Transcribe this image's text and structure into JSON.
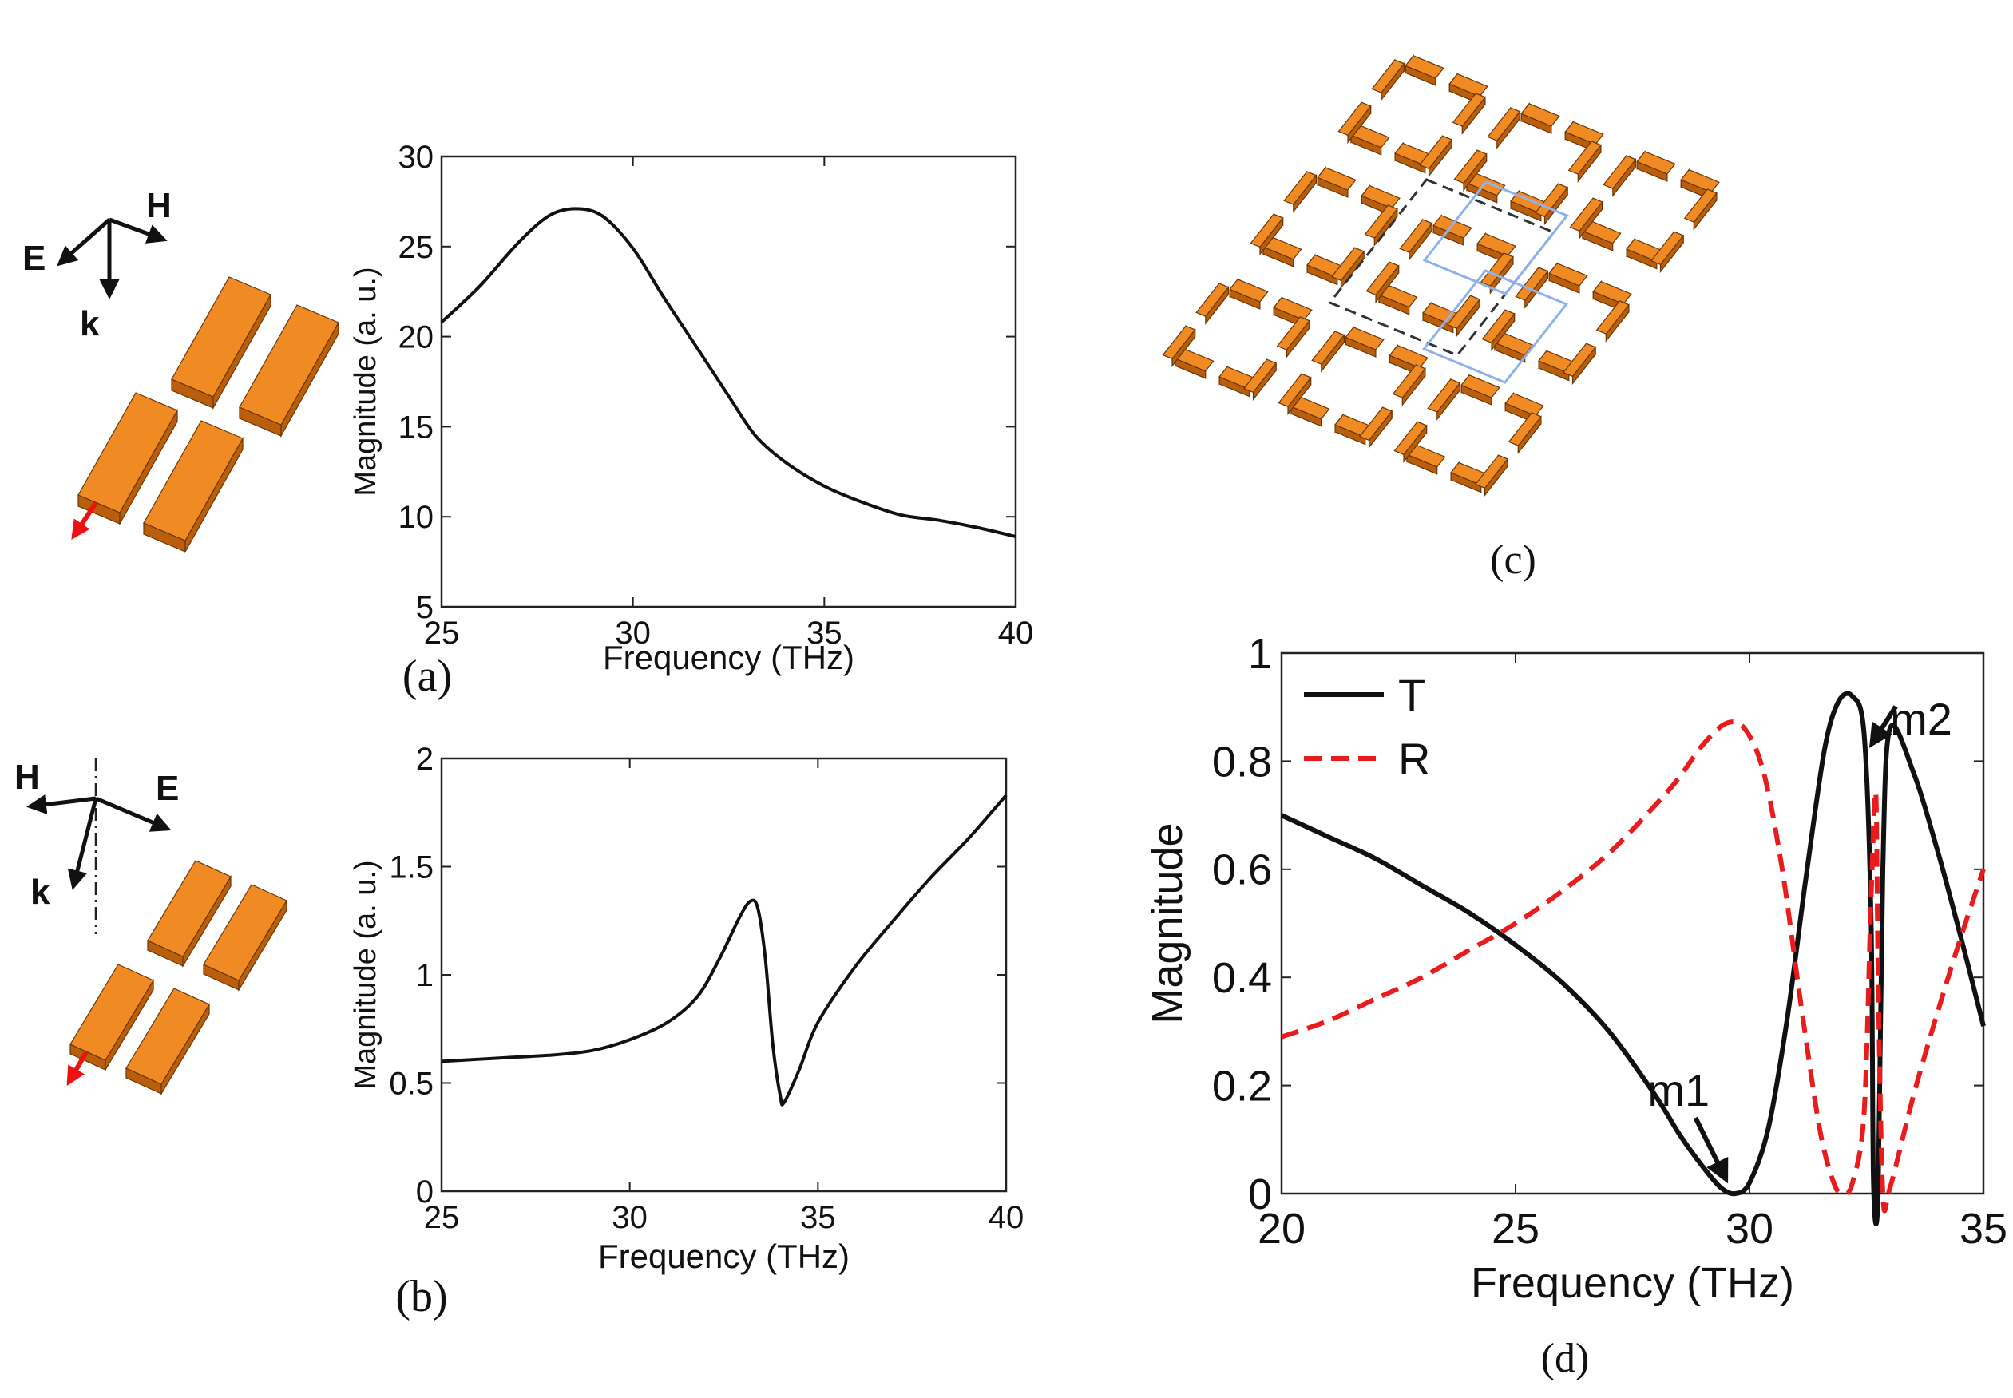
{
  "figure": {
    "caption_a": "(a)",
    "caption_b": "(b)",
    "caption_c": "(c)",
    "caption_d": "(d)"
  },
  "diagram_a": {
    "e_label": "E",
    "h_label": "H",
    "k_label": "k"
  },
  "diagram_b": {
    "e_label": "E",
    "h_label": "H",
    "k_label": "k"
  },
  "colors": {
    "bar_top": "#f08a22",
    "bar_front": "#b85e0c",
    "bar_edge": "#6b3606",
    "arrow_red": "#ee1111",
    "curve_black": "#111111",
    "curve_red": "#e81c1c",
    "unit_cell_blue": "#8fb2ec",
    "unit_cell_dash": "#333333"
  },
  "chart_data": [
    {
      "id": "a",
      "type": "line",
      "title": "",
      "xlabel": "Frequency (THz)",
      "ylabel": "Magnitude (a. u.)",
      "xlim": [
        25,
        40
      ],
      "ylim": [
        5,
        30
      ],
      "xticks": [
        25,
        30,
        35,
        40
      ],
      "yticks": [
        5,
        10,
        15,
        20,
        25,
        30
      ],
      "grid": false,
      "series": [
        {
          "name": "magnitude",
          "x": [
            25,
            26,
            27,
            27.8,
            28.5,
            29.2,
            30,
            30.8,
            31.7,
            32.5,
            33.2,
            34,
            35,
            36,
            37,
            38,
            39,
            40
          ],
          "y": [
            20.8,
            22.8,
            25.2,
            26.7,
            27.1,
            26.7,
            24.9,
            22.2,
            19.3,
            16.7,
            14.5,
            13.0,
            11.7,
            10.8,
            10.1,
            9.8,
            9.4,
            8.9
          ]
        }
      ]
    },
    {
      "id": "b",
      "type": "line",
      "title": "",
      "xlabel": "Frequency (THz)",
      "ylabel": "Magnitude (a. u.)",
      "xlim": [
        25,
        40
      ],
      "ylim": [
        0,
        2
      ],
      "xticks": [
        25,
        30,
        35,
        40
      ],
      "yticks": [
        0,
        0.5,
        1,
        1.5,
        2
      ],
      "ytick_labels": [
        "0",
        "0.5",
        "1",
        "1.5",
        "2"
      ],
      "grid": false,
      "series": [
        {
          "name": "magnitude",
          "x": [
            25,
            26,
            27,
            28,
            29,
            30,
            31,
            31.8,
            32.4,
            32.9,
            33.2,
            33.4,
            33.6,
            33.8,
            34.0,
            34.1,
            34.5,
            35,
            36,
            37,
            38,
            39,
            40
          ],
          "y": [
            0.6,
            0.61,
            0.62,
            0.63,
            0.65,
            0.7,
            0.78,
            0.9,
            1.08,
            1.26,
            1.34,
            1.31,
            1.08,
            0.68,
            0.44,
            0.41,
            0.56,
            0.78,
            1.04,
            1.25,
            1.45,
            1.63,
            1.83
          ]
        }
      ]
    },
    {
      "id": "d",
      "type": "line",
      "title": "",
      "xlabel": "Frequency (THz)",
      "ylabel": "Magnitude",
      "xlim": [
        20,
        35
      ],
      "ylim": [
        0,
        1
      ],
      "xticks": [
        20,
        25,
        30,
        35
      ],
      "yticks": [
        0,
        0.2,
        0.4,
        0.6,
        0.8,
        1
      ],
      "ytick_labels": [
        "0",
        "0.2",
        "0.4",
        "0.6",
        "0.8",
        "1"
      ],
      "grid": false,
      "legend": "top-left",
      "annotations": [
        {
          "text": "m1",
          "x": 29.7,
          "y": 0.0
        },
        {
          "text": "m2",
          "x": 32.75,
          "y": 0.82
        }
      ],
      "series": [
        {
          "name": "T",
          "style": "solid",
          "x": [
            20,
            21,
            22,
            23,
            24,
            25,
            26,
            27,
            28,
            28.5,
            29,
            29.4,
            29.7,
            30.0,
            30.4,
            30.8,
            31.2,
            31.6,
            31.9,
            32.2,
            32.45,
            32.6,
            32.65,
            32.75,
            32.85,
            33.0,
            33.5,
            34,
            34.5,
            35
          ],
          "y": [
            0.7,
            0.66,
            0.62,
            0.57,
            0.52,
            0.46,
            0.39,
            0.3,
            0.18,
            0.11,
            0.05,
            0.01,
            0.0,
            0.02,
            0.12,
            0.32,
            0.58,
            0.82,
            0.91,
            0.92,
            0.85,
            0.5,
            0.02,
            0.0,
            0.6,
            0.86,
            0.78,
            0.64,
            0.48,
            0.31
          ]
        },
        {
          "name": "R",
          "style": "dashed",
          "x": [
            20,
            21,
            22,
            23,
            24,
            25,
            26,
            27,
            28,
            28.5,
            29,
            29.5,
            29.9,
            30.3,
            30.7,
            31.1,
            31.5,
            31.8,
            32.0,
            32.2,
            32.45,
            32.6,
            32.7,
            32.75,
            32.85,
            33.0,
            33.5,
            34,
            34.5,
            35
          ],
          "y": [
            0.29,
            0.32,
            0.36,
            0.4,
            0.45,
            0.5,
            0.56,
            0.63,
            0.72,
            0.77,
            0.83,
            0.87,
            0.86,
            0.78,
            0.6,
            0.35,
            0.12,
            0.02,
            0.0,
            0.02,
            0.15,
            0.55,
            0.74,
            0.4,
            0.0,
            0.01,
            0.18,
            0.33,
            0.47,
            0.6
          ]
        }
      ]
    }
  ]
}
